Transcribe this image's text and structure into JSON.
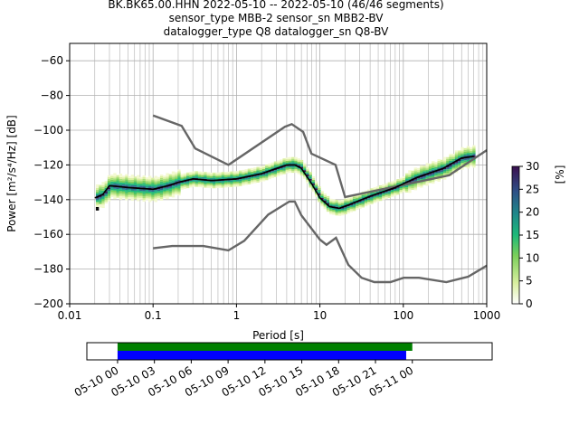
{
  "title_lines": [
    "BK.BK65.00.HHN   2022-05-10 -- 2022-05-10  (46/46 segments)",
    "sensor_type MBB-2 sensor_sn MBB2-BV",
    "datalogger_type Q8 datalogger_sn Q8-BV"
  ],
  "chart_data": {
    "type": "heatmap",
    "xlabel": "Period [s]",
    "ylabel": "Power [m²/s⁴/Hz] [dB]",
    "xscale": "log",
    "xlim": [
      0.01,
      1000
    ],
    "ylim": [
      -200,
      -50
    ],
    "xticks": [
      0.01,
      0.1,
      1,
      10,
      100,
      1000
    ],
    "xtick_labels": [
      "0.01",
      "0.1",
      "1",
      "10",
      "100",
      "1000"
    ],
    "yticks": [
      -60,
      -80,
      -100,
      -120,
      -140,
      -160,
      -180,
      -200
    ],
    "ytick_labels": [
      "−60",
      "−80",
      "−100",
      "−120",
      "−140",
      "−160",
      "−180",
      "−200"
    ],
    "grid": true,
    "colorbar": {
      "label": "[%]",
      "range": [
        0,
        30
      ],
      "ticks": [
        "0",
        "5",
        "10",
        "15",
        "20",
        "25",
        "30"
      ]
    },
    "mean_psd": {
      "period": [
        0.02,
        0.025,
        0.03,
        0.05,
        0.1,
        0.15,
        0.2,
        0.3,
        0.5,
        1,
        2,
        3,
        4,
        5,
        6,
        8,
        10,
        13,
        17,
        22,
        40,
        80,
        150,
        300,
        500,
        700
      ],
      "db": [
        -139,
        -137,
        -132,
        -133,
        -134,
        -132,
        -130,
        -128,
        -129,
        -128,
        -125,
        -122,
        -120,
        -120,
        -122,
        -131,
        -139,
        -144,
        -145,
        -143,
        -138,
        -133,
        -127,
        -122,
        -116,
        -115
      ]
    },
    "nhnm": {
      "period": [
        0.1,
        0.22,
        0.32,
        0.8,
        3.8,
        4.6,
        6.3,
        7.9,
        15.4,
        20,
        354,
        1000
      ],
      "db": [
        -91.5,
        -97.5,
        -110.5,
        -120,
        -98,
        -96.5,
        -101,
        -113.5,
        -120,
        -138.5,
        -126,
        -111.5
      ]
    },
    "nlnm": {
      "period": [
        0.1,
        0.17,
        0.4,
        0.8,
        1.24,
        2.4,
        4.3,
        5,
        6,
        10,
        12,
        15.6,
        21.9,
        31.6,
        45,
        70,
        101,
        154,
        328,
        600,
        1000
      ],
      "db": [
        -168,
        -166.7,
        -166.7,
        -169.2,
        -163.7,
        -148.6,
        -141.1,
        -141.1,
        -149,
        -163,
        -166,
        -162,
        -177.5,
        -185,
        -187.5,
        -187.5,
        -185,
        -185,
        -187.5,
        -184.4,
        -178
      ]
    }
  },
  "timeline": {
    "tick_labels": [
      "05-10 00",
      "05-10 03",
      "05-10 06",
      "05-10 09",
      "05-10 12",
      "05-10 15",
      "05-10 18",
      "05-10 21",
      "05-11 00"
    ],
    "range_hours": [
      -2.5,
      30.5
    ],
    "data_coverage_hours": [
      0,
      24
    ],
    "psd_coverage_hours": [
      0,
      23.5
    ],
    "colors": {
      "data": "#008000",
      "psd": "#0000ff"
    }
  }
}
